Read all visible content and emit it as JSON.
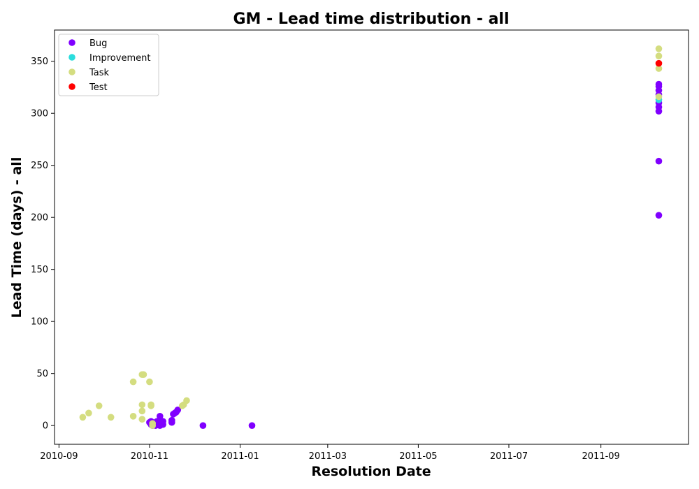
{
  "chart_data": {
    "type": "scatter",
    "title": "GM - Lead time distribution - all",
    "xlabel": "Resolution Date",
    "ylabel": "Lead Time (days) - all",
    "x_axis_type": "date",
    "xlim": [
      "2010-08-29",
      "2011-10-30"
    ],
    "ylim": [
      -18,
      380
    ],
    "x_ticks": [
      "2010-09-01",
      "2010-11-01",
      "2011-01-01",
      "2011-03-01",
      "2011-05-01",
      "2011-07-01",
      "2011-09-01"
    ],
    "x_tick_labels": [
      "2010-09",
      "2010-11",
      "2011-01",
      "2011-03",
      "2011-05",
      "2011-07",
      "2011-09"
    ],
    "y_ticks": [
      0,
      50,
      100,
      150,
      200,
      250,
      300,
      350
    ],
    "y_tick_labels": [
      "0",
      "50",
      "100",
      "150",
      "200",
      "250",
      "300",
      "350"
    ],
    "grid": false,
    "legend_position": "top-left",
    "series": [
      {
        "name": "Bug",
        "color": "#8000ff",
        "points": [
          {
            "x": "2010-11-01",
            "y": 3
          },
          {
            "x": "2010-11-02",
            "y": 4
          },
          {
            "x": "2010-11-02",
            "y": 1
          },
          {
            "x": "2010-11-03",
            "y": 0
          },
          {
            "x": "2010-11-04",
            "y": 2
          },
          {
            "x": "2010-11-05",
            "y": 3
          },
          {
            "x": "2010-11-05",
            "y": 0
          },
          {
            "x": "2010-11-06",
            "y": 1
          },
          {
            "x": "2010-11-06",
            "y": 4
          },
          {
            "x": "2010-11-07",
            "y": 2
          },
          {
            "x": "2010-11-08",
            "y": 9
          },
          {
            "x": "2010-11-08",
            "y": 0
          },
          {
            "x": "2010-11-09",
            "y": 3
          },
          {
            "x": "2010-11-10",
            "y": 1
          },
          {
            "x": "2010-11-10",
            "y": 4
          },
          {
            "x": "2010-11-16",
            "y": 3
          },
          {
            "x": "2010-11-16",
            "y": 5
          },
          {
            "x": "2010-11-17",
            "y": 11
          },
          {
            "x": "2010-11-18",
            "y": 12
          },
          {
            "x": "2010-11-19",
            "y": 13
          },
          {
            "x": "2010-11-20",
            "y": 15
          },
          {
            "x": "2010-12-07",
            "y": 0
          },
          {
            "x": "2011-01-09",
            "y": 0
          },
          {
            "x": "2011-10-10",
            "y": 202
          },
          {
            "x": "2011-10-10",
            "y": 254
          },
          {
            "x": "2011-10-10",
            "y": 302
          },
          {
            "x": "2011-10-10",
            "y": 306
          },
          {
            "x": "2011-10-10",
            "y": 310
          },
          {
            "x": "2011-10-10",
            "y": 318
          },
          {
            "x": "2011-10-10",
            "y": 322
          },
          {
            "x": "2011-10-10",
            "y": 326
          },
          {
            "x": "2011-10-10",
            "y": 328
          }
        ]
      },
      {
        "name": "Improvement",
        "color": "#2adddd",
        "points": [
          {
            "x": "2011-10-10",
            "y": 313
          }
        ]
      },
      {
        "name": "Task",
        "color": "#d4dd80",
        "points": [
          {
            "x": "2010-09-17",
            "y": 8
          },
          {
            "x": "2010-09-21",
            "y": 12
          },
          {
            "x": "2010-09-28",
            "y": 19
          },
          {
            "x": "2010-10-06",
            "y": 8
          },
          {
            "x": "2010-10-21",
            "y": 42
          },
          {
            "x": "2010-10-21",
            "y": 9
          },
          {
            "x": "2010-10-27",
            "y": 49
          },
          {
            "x": "2010-10-28",
            "y": 49
          },
          {
            "x": "2010-10-27",
            "y": 20
          },
          {
            "x": "2010-10-27",
            "y": 14
          },
          {
            "x": "2010-10-27",
            "y": 6
          },
          {
            "x": "2010-11-01",
            "y": 42
          },
          {
            "x": "2010-11-02",
            "y": 20
          },
          {
            "x": "2010-11-02",
            "y": 19
          },
          {
            "x": "2010-11-03",
            "y": 2
          },
          {
            "x": "2010-11-03",
            "y": 0
          },
          {
            "x": "2010-11-23",
            "y": 19
          },
          {
            "x": "2010-11-24",
            "y": 20
          },
          {
            "x": "2010-11-26",
            "y": 24
          },
          {
            "x": "2011-10-10",
            "y": 362
          },
          {
            "x": "2011-10-10",
            "y": 355
          },
          {
            "x": "2011-10-10",
            "y": 343
          },
          {
            "x": "2011-10-10",
            "y": 316
          }
        ]
      },
      {
        "name": "Test",
        "color": "#ff0000",
        "points": [
          {
            "x": "2011-10-10",
            "y": 348
          }
        ]
      }
    ]
  }
}
